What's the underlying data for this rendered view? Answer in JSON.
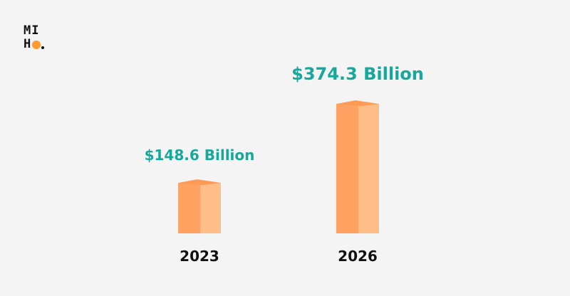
{
  "logo": {
    "line1": "MI",
    "line2": "H",
    "dot_color": "#ff9a2e"
  },
  "chart_data": {
    "type": "bar",
    "categories": [
      "2023",
      "2026"
    ],
    "values": [
      148.6,
      374.3
    ],
    "data_labels": [
      "$148.6 Billion",
      "$374.3 Billion"
    ],
    "title": "",
    "xlabel": "",
    "ylabel": "",
    "ylim": [
      0,
      400
    ],
    "grid": false,
    "legend": "none",
    "colors": {
      "bar_front": "#ffa262",
      "bar_side": "#ffbe88",
      "bar_top": "#ff9a55",
      "label": "#17a89b",
      "category": "#111111"
    }
  }
}
